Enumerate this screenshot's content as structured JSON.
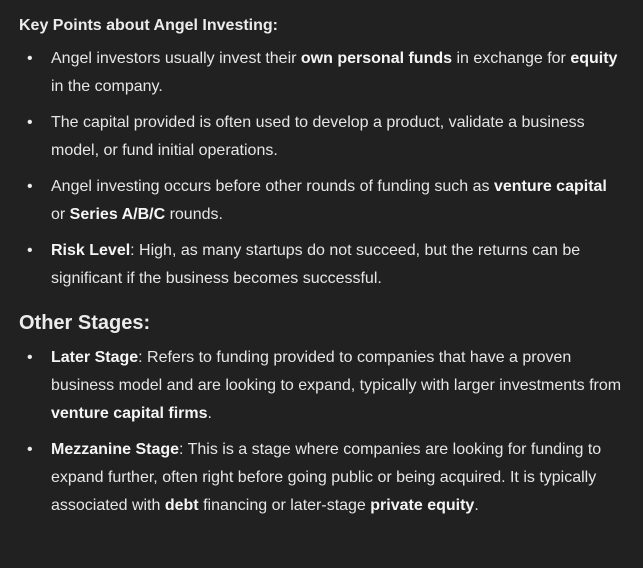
{
  "sections": [
    {
      "heading": "Key Points about Angel Investing:",
      "items": [
        [
          {
            "t": "Angel investors usually invest their "
          },
          {
            "t": "own personal funds",
            "b": true
          },
          {
            "t": " in exchange for "
          },
          {
            "t": "equity",
            "b": true
          },
          {
            "t": " in the company."
          }
        ],
        [
          {
            "t": "The capital provided is often used to develop a product, validate a business model, or fund initial operations."
          }
        ],
        [
          {
            "t": "Angel investing occurs before other rounds of funding such as "
          },
          {
            "t": "venture capital",
            "b": true
          },
          {
            "t": " or "
          },
          {
            "t": "Series A/B/C",
            "b": true
          },
          {
            "t": " rounds."
          }
        ],
        [
          {
            "t": "Risk Level",
            "b": true
          },
          {
            "t": ": High, as many startups do not succeed, but the returns can be significant if the business becomes successful."
          }
        ]
      ]
    },
    {
      "heading": "Other Stages:",
      "items": [
        [
          {
            "t": "Later Stage",
            "b": true
          },
          {
            "t": ": Refers to funding provided to companies that have a proven business model and are looking to expand, typically with larger investments from "
          },
          {
            "t": "venture capital firms",
            "b": true
          },
          {
            "t": "."
          }
        ],
        [
          {
            "t": "Mezzanine Stage",
            "b": true
          },
          {
            "t": ": This is a stage where companies are looking for funding to expand further, often right before going public or being acquired. It is typically associated with "
          },
          {
            "t": "debt",
            "b": true
          },
          {
            "t": " financing or later-stage "
          },
          {
            "t": "private equity",
            "b": true
          },
          {
            "t": "."
          }
        ]
      ]
    }
  ]
}
